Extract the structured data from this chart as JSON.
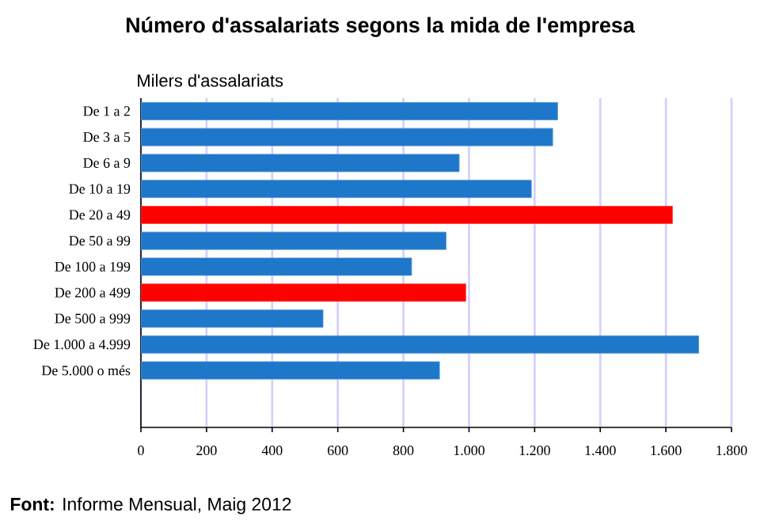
{
  "chart_data": {
    "type": "bar",
    "orientation": "horizontal",
    "title": "Número d'assalariats segons la mida de l'empresa",
    "xlabel": "Milers d'assalariats",
    "annotations": [
      "**Font:** Informe Mensual, Maig 2012"
    ],
    "categories": [
      "De 1 a 2",
      "De 3 a 5",
      "De 6 a 9",
      "De 10 a 19",
      "De 20 a 49",
      "De 50 a 99",
      "De 100 a 199",
      "De 200 a 499",
      "De 500 a 999",
      "De 1.000 a 4.999",
      "De 5.000 o més"
    ],
    "values": [
      1270,
      1255,
      970,
      1190,
      1620,
      930,
      825,
      990,
      555,
      1700,
      910
    ],
    "colors": [
      "#1f77c9",
      "#1f77c9",
      "#1f77c9",
      "#1f77c9",
      "#ff0000",
      "#1f77c9",
      "#1f77c9",
      "#ff0000",
      "#1f77c9",
      "#1f77c9",
      "#1f77c9"
    ],
    "xlim": [
      0,
      1800
    ],
    "xticks": [
      0,
      200,
      400,
      600,
      800,
      {
        "value": 1000,
        "label": "1.000"
      },
      {
        "value": 1200,
        "label": "1.200"
      },
      {
        "value": 1400,
        "label": "1.400"
      },
      {
        "value": 1600,
        "label": "1.600"
      },
      {
        "value": 1800,
        "label": "1.800"
      }
    ],
    "grid": "x"
  }
}
